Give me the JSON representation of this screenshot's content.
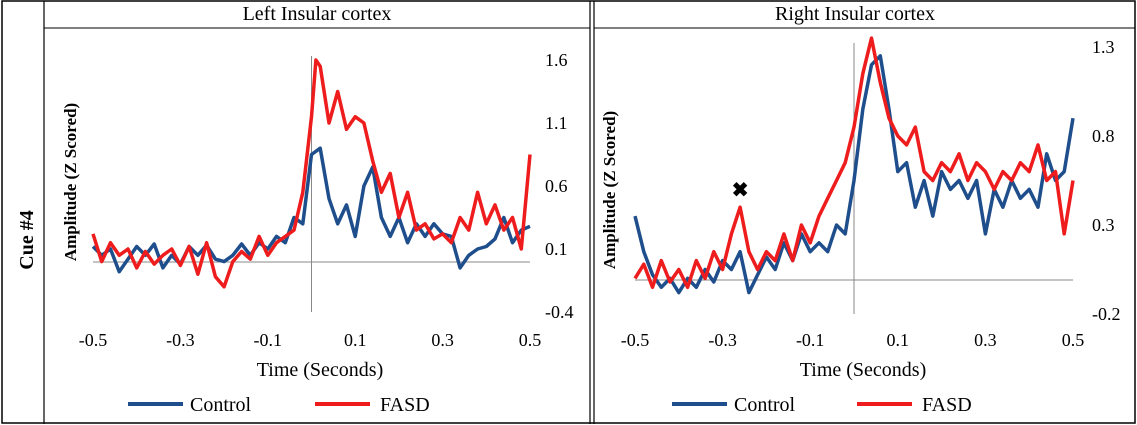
{
  "row_label": "Cue #4",
  "colors": {
    "control": "#1f4e8c",
    "fasd": "#ee1c1c"
  },
  "chart_data": [
    {
      "type": "line",
      "title": "Left Insular cortex",
      "xlabel": "Time (Seconds)",
      "ylabel": "Amplitude (Z Scored)",
      "xlim": [
        -0.5,
        0.5
      ],
      "ylim": [
        -0.4,
        1.6
      ],
      "x_ticks": [
        "-0.5",
        "-0.3",
        "-0.1",
        "0.1",
        "0.3",
        "0.5"
      ],
      "y_ticks": [
        "-0.4",
        "0.1",
        "0.6",
        "1.1",
        "1.6"
      ],
      "legend": "bottom",
      "grid": false,
      "series": [
        {
          "name": "Control",
          "color": "#1f4e8c",
          "points": [
            [
              -0.5,
              0.12
            ],
            [
              -0.48,
              0.05
            ],
            [
              -0.46,
              0.1
            ],
            [
              -0.44,
              -0.08
            ],
            [
              -0.42,
              0.02
            ],
            [
              -0.4,
              0.12
            ],
            [
              -0.38,
              0.05
            ],
            [
              -0.36,
              0.14
            ],
            [
              -0.34,
              -0.05
            ],
            [
              -0.32,
              0.05
            ],
            [
              -0.3,
              -0.02
            ],
            [
              -0.28,
              0.12
            ],
            [
              -0.26,
              0.05
            ],
            [
              -0.24,
              0.13
            ],
            [
              -0.22,
              0.02
            ],
            [
              -0.2,
              0.0
            ],
            [
              -0.18,
              0.05
            ],
            [
              -0.16,
              0.14
            ],
            [
              -0.14,
              0.05
            ],
            [
              -0.12,
              0.15
            ],
            [
              -0.1,
              0.1
            ],
            [
              -0.08,
              0.2
            ],
            [
              -0.06,
              0.15
            ],
            [
              -0.04,
              0.35
            ],
            [
              -0.02,
              0.3
            ],
            [
              0.0,
              0.85
            ],
            [
              0.02,
              0.9
            ],
            [
              0.04,
              0.5
            ],
            [
              0.06,
              0.3
            ],
            [
              0.08,
              0.45
            ],
            [
              0.1,
              0.2
            ],
            [
              0.12,
              0.6
            ],
            [
              0.14,
              0.75
            ],
            [
              0.16,
              0.35
            ],
            [
              0.18,
              0.2
            ],
            [
              0.2,
              0.35
            ],
            [
              0.22,
              0.15
            ],
            [
              0.24,
              0.3
            ],
            [
              0.26,
              0.2
            ],
            [
              0.28,
              0.3
            ],
            [
              0.3,
              0.22
            ],
            [
              0.32,
              0.2
            ],
            [
              0.34,
              -0.05
            ],
            [
              0.36,
              0.05
            ],
            [
              0.38,
              0.1
            ],
            [
              0.4,
              0.12
            ],
            [
              0.42,
              0.18
            ],
            [
              0.44,
              0.35
            ],
            [
              0.46,
              0.15
            ],
            [
              0.48,
              0.25
            ],
            [
              0.5,
              0.28
            ]
          ]
        },
        {
          "name": "FASD",
          "color": "#ee1c1c",
          "points": [
            [
              -0.5,
              0.22
            ],
            [
              -0.48,
              0.0
            ],
            [
              -0.46,
              0.15
            ],
            [
              -0.44,
              0.05
            ],
            [
              -0.42,
              0.1
            ],
            [
              -0.4,
              -0.05
            ],
            [
              -0.38,
              0.08
            ],
            [
              -0.36,
              -0.02
            ],
            [
              -0.34,
              0.05
            ],
            [
              -0.32,
              0.1
            ],
            [
              -0.3,
              -0.03
            ],
            [
              -0.28,
              0.12
            ],
            [
              -0.26,
              -0.1
            ],
            [
              -0.24,
              0.15
            ],
            [
              -0.22,
              -0.12
            ],
            [
              -0.2,
              -0.2
            ],
            [
              -0.18,
              0.0
            ],
            [
              -0.16,
              0.08
            ],
            [
              -0.14,
              0.02
            ],
            [
              -0.12,
              0.2
            ],
            [
              -0.1,
              0.05
            ],
            [
              -0.08,
              0.15
            ],
            [
              -0.06,
              0.2
            ],
            [
              -0.04,
              0.25
            ],
            [
              -0.02,
              0.55
            ],
            [
              0.0,
              1.15
            ],
            [
              0.01,
              1.6
            ],
            [
              0.02,
              1.55
            ],
            [
              0.04,
              1.1
            ],
            [
              0.06,
              1.35
            ],
            [
              0.08,
              1.05
            ],
            [
              0.1,
              1.15
            ],
            [
              0.12,
              1.1
            ],
            [
              0.14,
              0.8
            ],
            [
              0.16,
              0.55
            ],
            [
              0.18,
              0.7
            ],
            [
              0.2,
              0.35
            ],
            [
              0.22,
              0.55
            ],
            [
              0.24,
              0.25
            ],
            [
              0.26,
              0.3
            ],
            [
              0.28,
              0.18
            ],
            [
              0.3,
              0.22
            ],
            [
              0.32,
              0.15
            ],
            [
              0.34,
              0.35
            ],
            [
              0.36,
              0.25
            ],
            [
              0.38,
              0.55
            ],
            [
              0.4,
              0.3
            ],
            [
              0.42,
              0.45
            ],
            [
              0.44,
              0.25
            ],
            [
              0.46,
              0.35
            ],
            [
              0.48,
              0.1
            ],
            [
              0.5,
              0.85
            ]
          ]
        }
      ]
    },
    {
      "type": "line",
      "title": "Right Insular cortex",
      "xlabel": "Time (Seconds)",
      "ylabel": "Amplitude (Z Scored)",
      "xlim": [
        -0.5,
        0.5
      ],
      "ylim": [
        -0.2,
        1.3
      ],
      "x_ticks": [
        "-0.5",
        "-0.3",
        "-0.1",
        "0.1",
        "0.3",
        "0.5"
      ],
      "y_ticks": [
        "-0.2",
        "0.3",
        "0.8",
        "1.3"
      ],
      "legend": "bottom",
      "grid": false,
      "annotations": [
        {
          "text": "✖",
          "x": -0.26,
          "y": 0.46
        }
      ],
      "series": [
        {
          "name": "Control",
          "color": "#1f4e8c",
          "points": [
            [
              -0.5,
              0.35
            ],
            [
              -0.48,
              0.15
            ],
            [
              -0.46,
              0.02
            ],
            [
              -0.44,
              -0.05
            ],
            [
              -0.42,
              0.0
            ],
            [
              -0.4,
              -0.08
            ],
            [
              -0.38,
              0.0
            ],
            [
              -0.36,
              -0.05
            ],
            [
              -0.34,
              0.05
            ],
            [
              -0.32,
              -0.02
            ],
            [
              -0.3,
              0.1
            ],
            [
              -0.28,
              0.05
            ],
            [
              -0.26,
              0.15
            ],
            [
              -0.24,
              -0.08
            ],
            [
              -0.22,
              0.02
            ],
            [
              -0.2,
              0.12
            ],
            [
              -0.18,
              0.05
            ],
            [
              -0.16,
              0.2
            ],
            [
              -0.14,
              0.1
            ],
            [
              -0.12,
              0.25
            ],
            [
              -0.1,
              0.15
            ],
            [
              -0.08,
              0.2
            ],
            [
              -0.06,
              0.15
            ],
            [
              -0.04,
              0.3
            ],
            [
              -0.02,
              0.25
            ],
            [
              0.0,
              0.55
            ],
            [
              0.02,
              0.95
            ],
            [
              0.04,
              1.2
            ],
            [
              0.06,
              1.25
            ],
            [
              0.08,
              0.95
            ],
            [
              0.1,
              0.6
            ],
            [
              0.12,
              0.65
            ],
            [
              0.14,
              0.4
            ],
            [
              0.16,
              0.55
            ],
            [
              0.18,
              0.35
            ],
            [
              0.2,
              0.6
            ],
            [
              0.22,
              0.5
            ],
            [
              0.24,
              0.55
            ],
            [
              0.26,
              0.45
            ],
            [
              0.28,
              0.55
            ],
            [
              0.3,
              0.25
            ],
            [
              0.32,
              0.5
            ],
            [
              0.34,
              0.4
            ],
            [
              0.36,
              0.55
            ],
            [
              0.38,
              0.45
            ],
            [
              0.4,
              0.5
            ],
            [
              0.42,
              0.4
            ],
            [
              0.44,
              0.7
            ],
            [
              0.46,
              0.55
            ],
            [
              0.48,
              0.6
            ],
            [
              0.5,
              0.9
            ]
          ]
        },
        {
          "name": "FASD",
          "color": "#ee1c1c",
          "points": [
            [
              -0.5,
              0.0
            ],
            [
              -0.48,
              0.08
            ],
            [
              -0.46,
              -0.05
            ],
            [
              -0.44,
              0.1
            ],
            [
              -0.42,
              -0.02
            ],
            [
              -0.4,
              0.05
            ],
            [
              -0.38,
              -0.05
            ],
            [
              -0.36,
              0.1
            ],
            [
              -0.34,
              0.0
            ],
            [
              -0.32,
              0.15
            ],
            [
              -0.3,
              0.05
            ],
            [
              -0.28,
              0.25
            ],
            [
              -0.26,
              0.4
            ],
            [
              -0.24,
              0.15
            ],
            [
              -0.22,
              0.05
            ],
            [
              -0.2,
              0.15
            ],
            [
              -0.18,
              0.1
            ],
            [
              -0.16,
              0.25
            ],
            [
              -0.14,
              0.1
            ],
            [
              -0.12,
              0.3
            ],
            [
              -0.1,
              0.2
            ],
            [
              -0.08,
              0.35
            ],
            [
              -0.06,
              0.45
            ],
            [
              -0.04,
              0.55
            ],
            [
              -0.02,
              0.65
            ],
            [
              0.0,
              0.85
            ],
            [
              0.02,
              1.15
            ],
            [
              0.04,
              1.35
            ],
            [
              0.06,
              1.1
            ],
            [
              0.08,
              0.9
            ],
            [
              0.1,
              0.8
            ],
            [
              0.12,
              0.75
            ],
            [
              0.14,
              0.85
            ],
            [
              0.16,
              0.6
            ],
            [
              0.18,
              0.55
            ],
            [
              0.2,
              0.65
            ],
            [
              0.22,
              0.6
            ],
            [
              0.24,
              0.7
            ],
            [
              0.26,
              0.55
            ],
            [
              0.28,
              0.65
            ],
            [
              0.3,
              0.6
            ],
            [
              0.32,
              0.5
            ],
            [
              0.34,
              0.6
            ],
            [
              0.36,
              0.55
            ],
            [
              0.38,
              0.65
            ],
            [
              0.4,
              0.6
            ],
            [
              0.42,
              0.75
            ],
            [
              0.44,
              0.55
            ],
            [
              0.46,
              0.6
            ],
            [
              0.48,
              0.25
            ],
            [
              0.5,
              0.55
            ]
          ]
        }
      ]
    }
  ]
}
